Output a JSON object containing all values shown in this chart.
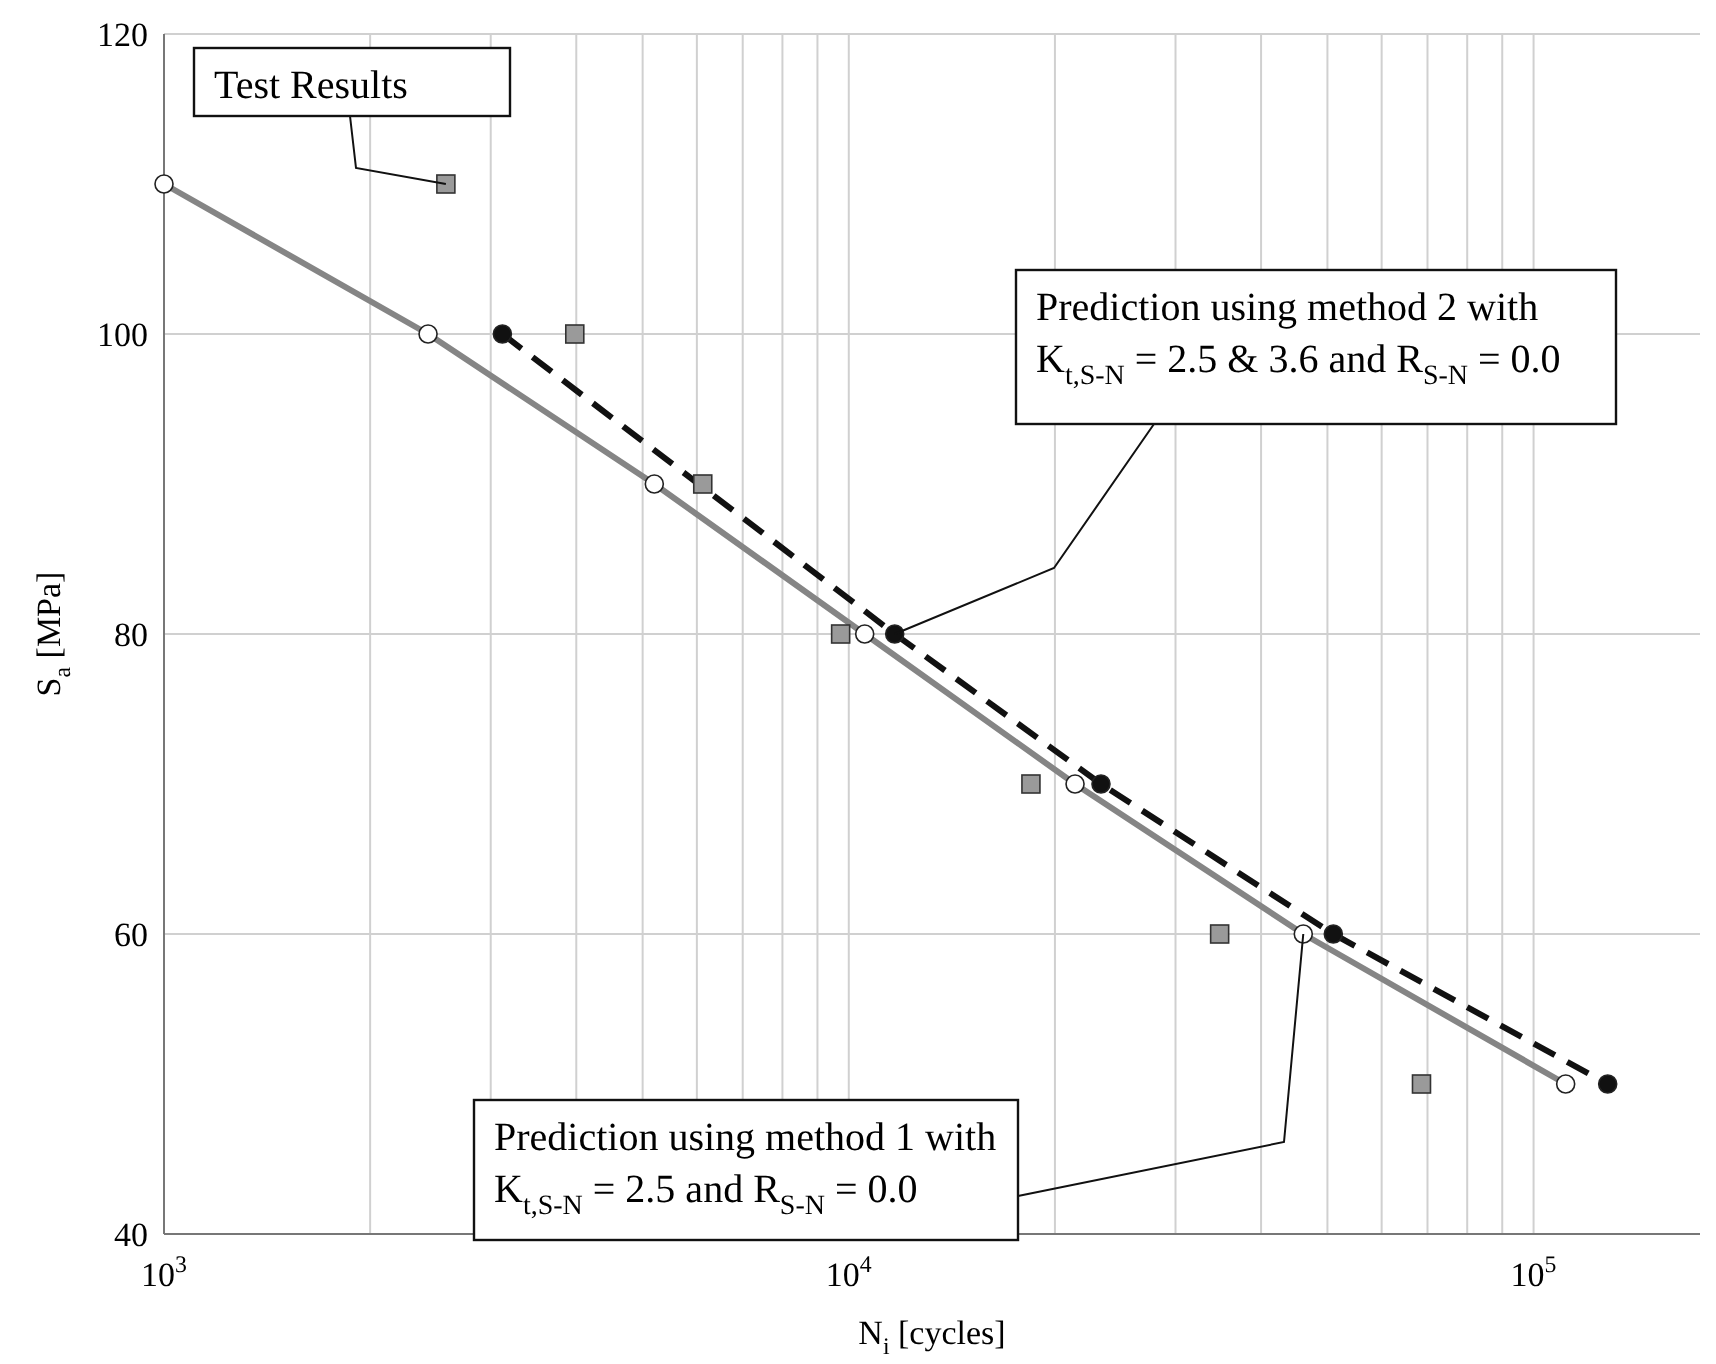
{
  "chart_data": {
    "type": "line",
    "xlabel": "N$_{i}$ [cycles]",
    "ylabel": "S$_{a}$ [MPa]",
    "log": "x",
    "xlim": [
      1000,
      175000
    ],
    "ylim": [
      40,
      120
    ],
    "xticks": [
      {
        "value": 1000,
        "label": "10$^{3}$"
      },
      {
        "value": 2000,
        "label": null
      },
      {
        "value": 3000,
        "label": null
      },
      {
        "value": 4000,
        "label": null
      },
      {
        "value": 5000,
        "label": null
      },
      {
        "value": 6000,
        "label": null
      },
      {
        "value": 7000,
        "label": null
      },
      {
        "value": 8000,
        "label": null
      },
      {
        "value": 9000,
        "label": null
      },
      {
        "value": 10000,
        "label": "10$^{4}$"
      },
      {
        "value": 20000,
        "label": null
      },
      {
        "value": 30000,
        "label": null
      },
      {
        "value": 40000,
        "label": null
      },
      {
        "value": 50000,
        "label": null
      },
      {
        "value": 60000,
        "label": null
      },
      {
        "value": 70000,
        "label": null
      },
      {
        "value": 80000,
        "label": null
      },
      {
        "value": 90000,
        "label": null
      },
      {
        "value": 100000,
        "label": "10$^{5}$"
      }
    ],
    "yticks": [
      40,
      60,
      80,
      100,
      120
    ],
    "grid": true,
    "series": [
      {
        "type": "line",
        "color": "#858585",
        "marker": "circle",
        "colors": [
          "#ffffff",
          "#ffffff",
          "#ffffff",
          "#ffffff",
          "#ffffff",
          "#ffffff",
          "#ffffff"
        ],
        "line_style": "solid",
        "x": [
          1000,
          2430,
          5200,
          10550,
          21400,
          46100,
          111400
        ],
        "values": [
          110,
          100,
          90,
          80,
          70,
          60,
          50
        ]
      },
      {
        "type": "line",
        "color": "#111111",
        "marker": "circle",
        "colors": [
          "#111111",
          "#111111",
          "#111111",
          "#111111",
          "#111111"
        ],
        "line_style": "dashed",
        "x": [
          3120,
          11670,
          23350,
          51000,
          128300
        ],
        "values": [
          100,
          80,
          70,
          60,
          50
        ]
      },
      {
        "type": "scatter",
        "color": "#9a9a9a",
        "marker": "square",
        "x": [
          2580,
          3980,
          6120,
          9730,
          18450,
          34800,
          68600
        ],
        "values": [
          110,
          100,
          90,
          80,
          70,
          60,
          50
        ]
      }
    ],
    "annotations": [
      {
        "text": "Test Results",
        "x": 2580,
        "y": 110
      },
      {
        "text": "Prediction using method 2 with K$_{t,S-N}$ = 2.5 & 3.6 and R$_{S-N}$ = 0.0",
        "x": 11670,
        "y": 80
      },
      {
        "text": "Prediction using method 1 with K$_{t,S-N}$ = 2.5 and R$_{S-N}$ = 0.0",
        "x": 46100,
        "y": 60
      }
    ]
  }
}
